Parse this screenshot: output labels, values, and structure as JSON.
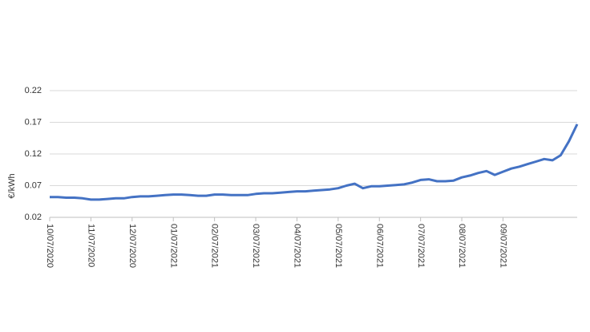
{
  "chart_data": {
    "type": "line",
    "y_label": "€/kWh",
    "categories": [
      "10/07/2020",
      null,
      null,
      null,
      null,
      "11/07/2020",
      null,
      null,
      null,
      null,
      "12/07/2020",
      null,
      null,
      null,
      null,
      "01/07/2021",
      null,
      null,
      null,
      null,
      "02/07/2021",
      null,
      null,
      null,
      null,
      "03/07/2021",
      null,
      null,
      null,
      null,
      "04/07/2021",
      null,
      null,
      null,
      null,
      "05/07/2021",
      null,
      null,
      null,
      null,
      "06/07/2021",
      null,
      null,
      null,
      null,
      "07/07/2021",
      null,
      null,
      null,
      null,
      "08/07/2021",
      null,
      null,
      null,
      null,
      "09/07/2021",
      null,
      null,
      null,
      null,
      null,
      null,
      null,
      null,
      null
    ],
    "series": [
      {
        "name": null,
        "color": "#4472c4",
        "values": [
          0.052,
          0.052,
          0.051,
          0.051,
          0.05,
          0.048,
          0.048,
          0.049,
          0.05,
          0.05,
          0.052,
          0.053,
          0.053,
          0.054,
          0.055,
          0.056,
          0.056,
          0.055,
          0.054,
          0.054,
          0.056,
          0.056,
          0.055,
          0.055,
          0.055,
          0.057,
          0.058,
          0.058,
          0.059,
          0.06,
          0.061,
          0.061,
          0.062,
          0.063,
          0.064,
          0.066,
          0.07,
          0.073,
          0.066,
          0.069,
          0.069,
          0.07,
          0.071,
          0.072,
          0.075,
          0.079,
          0.08,
          0.077,
          0.077,
          0.078,
          0.083,
          0.086,
          0.09,
          0.093,
          0.087,
          0.092,
          0.097,
          0.1,
          0.104,
          0.108,
          0.112,
          0.11,
          0.118,
          0.14,
          0.167
        ]
      }
    ],
    "ylim": [
      0.02,
      0.22
    ],
    "yticks": [
      0.02,
      0.07,
      0.12,
      0.17,
      0.22
    ],
    "grid": true
  }
}
